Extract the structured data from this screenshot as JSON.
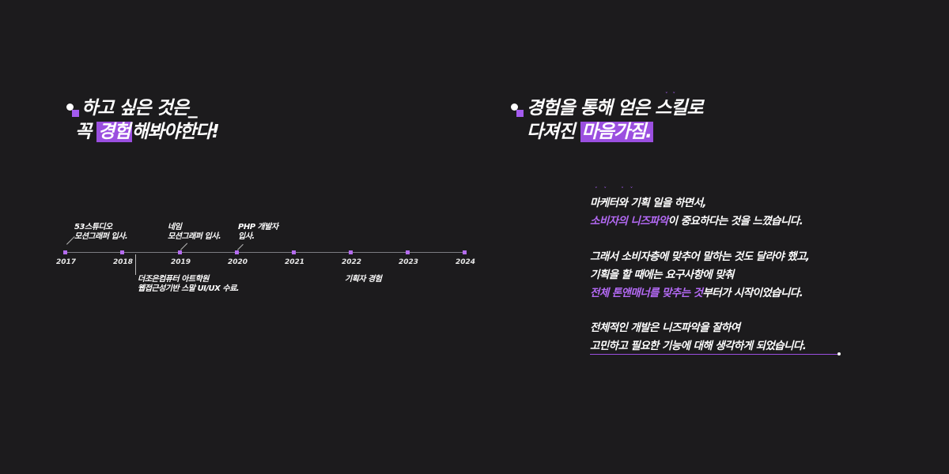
{
  "left_heading": {
    "line1": "하고 싶은 것은_",
    "line2_pre": "꼭 ",
    "line2_hl": "경험",
    "line2_post": "해봐야한다!"
  },
  "right_heading": {
    "line1": "경험을 통해 얻은 스킬로",
    "line2_pre": "다져진 ",
    "line2_hl": "마음가짐."
  },
  "timeline": {
    "years": [
      "2017",
      "2018",
      "2019",
      "2020",
      "2021",
      "2022",
      "2023",
      "2024"
    ],
    "events": {
      "studio53": [
        "53스튜디오",
        "모션그래퍼 입사."
      ],
      "naver": [
        "네임",
        "모션그래퍼 입사."
      ],
      "php": [
        "PHP 개발자",
        "입사."
      ],
      "academy": [
        "더조은컴퓨터 아트학원",
        "웹접근성기반 스말 UI/UX 수료."
      ],
      "planner": [
        "기획자 경험"
      ]
    }
  },
  "paragraph": {
    "p1_l1": "마케터와 기획 일을 하면서,",
    "p1_l2_hl": "소비자의 니즈파악",
    "p1_l2_rest": "이 중요하다는 것을 느꼈습니다.",
    "p2_l1": "그래서 소비자층에 맞추어 말하는 것도 달라야 했고,",
    "p2_l2": "기획을 할 때에는 요구사항에 맞춰",
    "p2_l3_hl": "전체 톤앤매너를 맞추는 것",
    "p2_l3_rest": "부터가 시작이었습니다.",
    "p3_l1": "전체적인 개발은 니즈파악을 잘하여",
    "p3_l2": "고민하고 필요한 기능에 대해 생각하게 되었습니다."
  },
  "colors": {
    "background": "#1c1b1d",
    "accent": "#9b4fe0",
    "accent_text": "#b46af5"
  }
}
